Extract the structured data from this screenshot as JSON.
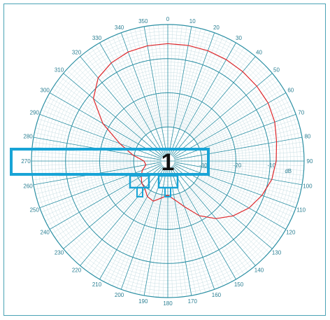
{
  "chart_data": {
    "type": "polar",
    "angle_unit": "degrees",
    "angle_labels": [
      "0",
      "10",
      "20",
      "30",
      "40",
      "50",
      "60",
      "70",
      "80",
      "90",
      "100",
      "110",
      "120",
      "130",
      "140",
      "150",
      "160",
      "170",
      "180",
      "190",
      "200",
      "210",
      "220",
      "230",
      "240",
      "250",
      "260",
      "270",
      "280",
      "290",
      "300",
      "310",
      "320",
      "330",
      "340",
      "350"
    ],
    "radial_labels": [
      "-30",
      "-20",
      "-10"
    ],
    "radial_unit": "dB",
    "rlim": [
      -40,
      0
    ],
    "marker_label": "1",
    "series": [
      {
        "color": "#e0262a",
        "points": [
          [
            0,
            -5.6
          ],
          [
            10,
            -5.6
          ],
          [
            20,
            -5.6
          ],
          [
            30,
            -5.7
          ],
          [
            40,
            -5.8
          ],
          [
            50,
            -5.9
          ],
          [
            60,
            -6.0
          ],
          [
            70,
            -6.6
          ],
          [
            80,
            -7.6
          ],
          [
            90,
            -8.2
          ],
          [
            100,
            -9.0
          ],
          [
            110,
            -10.6
          ],
          [
            120,
            -12.5
          ],
          [
            130,
            -15.0
          ],
          [
            140,
            -18.0
          ],
          [
            150,
            -21.5
          ],
          [
            160,
            -25.8
          ],
          [
            170,
            -28.5
          ],
          [
            180,
            -30.0
          ],
          [
            190,
            -29.0
          ],
          [
            200,
            -27.5
          ],
          [
            210,
            -28.0
          ],
          [
            220,
            -29.5
          ],
          [
            230,
            -30.0
          ],
          [
            240,
            -31.0
          ],
          [
            250,
            -32.0
          ],
          [
            260,
            -33.5
          ],
          [
            270,
            -33.0
          ],
          [
            280,
            -29.5
          ],
          [
            290,
            -25.0
          ],
          [
            300,
            -18.0
          ],
          [
            310,
            -11.5
          ],
          [
            320,
            -8.2
          ],
          [
            330,
            -6.8
          ],
          [
            340,
            -6.0
          ],
          [
            350,
            -5.7
          ]
        ]
      }
    ],
    "colors": {
      "grid": "#2b8fa3",
      "minor_grid": "#c9dfe4",
      "curve": "#e0262a",
      "highlight": "#18a4d6"
    }
  }
}
